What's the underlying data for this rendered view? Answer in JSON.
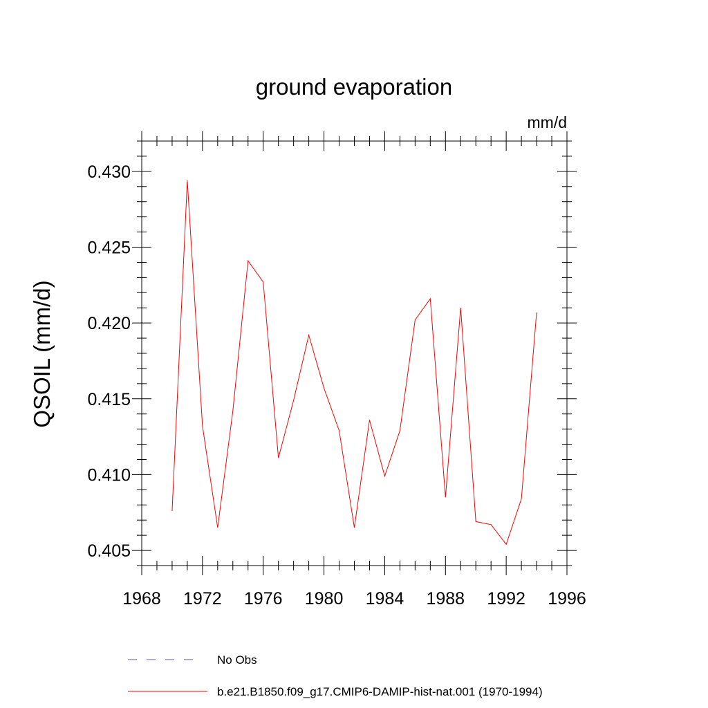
{
  "chart_data": {
    "type": "line",
    "title": "ground evaporation",
    "units": "mm/d",
    "ylabel": "QSOIL  (mm/d)",
    "xlabel": "",
    "xlim": [
      1968,
      1996
    ],
    "ylim": [
      0.404,
      0.432
    ],
    "x_ticks": [
      "1968",
      "1972",
      "1976",
      "1980",
      "1984",
      "1988",
      "1992",
      "1996"
    ],
    "y_ticks": [
      "0.405",
      "0.410",
      "0.415",
      "0.420",
      "0.425",
      "0.430"
    ],
    "x_tick_values": [
      1968,
      1972,
      1976,
      1980,
      1984,
      1988,
      1992,
      1996
    ],
    "y_tick_values": [
      0.405,
      0.41,
      0.415,
      0.42,
      0.425,
      0.43
    ],
    "grid": false,
    "legend_placement": "bottom",
    "series": [
      {
        "name": "No Obs",
        "color": "#5555aa",
        "dashed": true,
        "x": [],
        "values": []
      },
      {
        "name": "b.e21.B1850.f09_g17.CMIP6-DAMIP-hist-nat.001 (1970-1994)",
        "color": "#ff0000",
        "dashed": false,
        "x": [
          1970,
          1971,
          1972,
          1973,
          1974,
          1975,
          1976,
          1977,
          1978,
          1979,
          1980,
          1981,
          1982,
          1983,
          1984,
          1985,
          1986,
          1987,
          1988,
          1989,
          1990,
          1991,
          1992,
          1993,
          1994
        ],
        "values": [
          0.4076,
          0.4294,
          0.4132,
          0.4065,
          0.4142,
          0.4241,
          0.4227,
          0.4111,
          0.4149,
          0.4192,
          0.4157,
          0.4129,
          0.4065,
          0.4136,
          0.4099,
          0.4129,
          0.4202,
          0.4216,
          0.4085,
          0.421,
          0.4069,
          0.4067,
          0.4054,
          0.4084,
          0.4207
        ]
      }
    ]
  }
}
